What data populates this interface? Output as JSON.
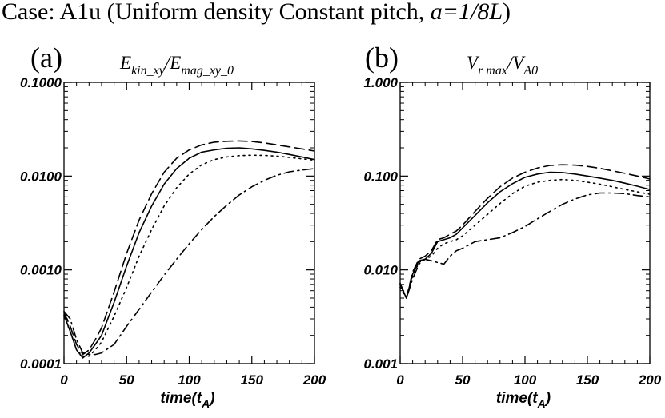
{
  "figure": {
    "title_prefix": "Case: A1u (Uniform density Constant pitch, ",
    "title_param": "a=1/8L",
    "title_suffix": ")"
  },
  "chart_data": [
    {
      "type": "line",
      "panel": "(a)",
      "title_sym": "E",
      "title_sub": "kin_xy",
      "title_sep": "/E",
      "title_sub2": "mag_xy_0",
      "xlabel_main": "time(t",
      "xlabel_sub": "A",
      "xlabel_end": ")",
      "yscale": "log",
      "xlim": [
        0,
        200
      ],
      "ylim": [
        0.0001,
        0.1
      ],
      "xticks": [
        0,
        50,
        100,
        150,
        200
      ],
      "xtick_labels": [
        "0",
        "50",
        "100",
        "150",
        "200"
      ],
      "yticks": [
        0.0001,
        0.001,
        0.01,
        0.1
      ],
      "ytick_labels": [
        "0.0001",
        "0.0010",
        "0.0100",
        "0.1000"
      ],
      "series": [
        {
          "name": "solid",
          "dash": "solid",
          "x": [
            0,
            5,
            10,
            15,
            20,
            25,
            30,
            40,
            50,
            60,
            70,
            80,
            90,
            100,
            110,
            120,
            130,
            140,
            150,
            160,
            170,
            180,
            190,
            200
          ],
          "y": [
            0.00033,
            0.00022,
            0.00014,
            0.000115,
            0.00013,
            0.00016,
            0.0002,
            0.00045,
            0.0011,
            0.0025,
            0.0048,
            0.0082,
            0.012,
            0.0155,
            0.018,
            0.019,
            0.0198,
            0.02,
            0.0195,
            0.0188,
            0.018,
            0.017,
            0.016,
            0.015
          ]
        },
        {
          "name": "dashed",
          "dash": "dashed",
          "x": [
            0,
            5,
            10,
            15,
            20,
            25,
            30,
            40,
            50,
            60,
            70,
            80,
            90,
            100,
            110,
            120,
            130,
            140,
            150,
            160,
            170,
            180,
            190,
            200
          ],
          "y": [
            0.00035,
            0.00025,
            0.00016,
            0.000125,
            0.00014,
            0.00018,
            0.00024,
            0.00058,
            0.0015,
            0.0034,
            0.0065,
            0.011,
            0.0155,
            0.019,
            0.0215,
            0.023,
            0.0235,
            0.0237,
            0.0234,
            0.0226,
            0.0215,
            0.0205,
            0.0195,
            0.0185
          ]
        },
        {
          "name": "dotted",
          "dash": "dotted",
          "x": [
            0,
            5,
            10,
            15,
            20,
            25,
            30,
            40,
            50,
            60,
            70,
            80,
            90,
            100,
            110,
            120,
            130,
            140,
            150,
            160,
            170,
            180,
            190,
            200
          ],
          "y": [
            0.00032,
            0.00022,
            0.00014,
            0.00012,
            0.00012,
            0.00014,
            0.00017,
            0.00032,
            0.00065,
            0.0014,
            0.0027,
            0.0048,
            0.0075,
            0.0105,
            0.0132,
            0.015,
            0.016,
            0.0165,
            0.0167,
            0.0166,
            0.0163,
            0.0158,
            0.0153,
            0.0148
          ]
        },
        {
          "name": "dash-dot",
          "dash": "dashdot",
          "x": [
            0,
            5,
            10,
            15,
            20,
            25,
            30,
            40,
            50,
            60,
            70,
            80,
            90,
            100,
            110,
            120,
            130,
            140,
            150,
            160,
            170,
            180,
            190,
            200
          ],
          "y": [
            0.00036,
            0.0003,
            0.00018,
            0.00013,
            0.000125,
            0.000125,
            0.00013,
            0.00016,
            0.00025,
            0.00038,
            0.00058,
            0.00088,
            0.0013,
            0.0019,
            0.0027,
            0.0037,
            0.0049,
            0.0063,
            0.0077,
            0.009,
            0.0102,
            0.0111,
            0.0116,
            0.012
          ]
        }
      ]
    },
    {
      "type": "line",
      "panel": "(b)",
      "title_sym": "V",
      "title_sub": "r  max",
      "title_sep": "/V",
      "title_sub2": "A0",
      "xlabel_main": "time(t",
      "xlabel_sub": "A",
      "xlabel_end": ")",
      "yscale": "log",
      "xlim": [
        0,
        200
      ],
      "ylim": [
        0.001,
        1.0
      ],
      "xticks": [
        0,
        50,
        100,
        150,
        200
      ],
      "xtick_labels": [
        "0",
        "50",
        "100",
        "150",
        "200"
      ],
      "yticks": [
        0.001,
        0.01,
        0.1,
        1.0
      ],
      "ytick_labels": [
        "0.001",
        "0.010",
        "0.100",
        "1.000"
      ],
      "series": [
        {
          "name": "solid",
          "dash": "solid",
          "x": [
            0,
            5,
            10,
            15,
            20,
            25,
            30,
            35,
            40,
            45,
            50,
            60,
            70,
            80,
            90,
            100,
            110,
            120,
            130,
            140,
            150,
            160,
            170,
            180,
            190,
            200
          ],
          "y": [
            0.007,
            0.005,
            0.009,
            0.0125,
            0.013,
            0.015,
            0.02,
            0.021,
            0.022,
            0.024,
            0.028,
            0.038,
            0.052,
            0.068,
            0.083,
            0.097,
            0.105,
            0.11,
            0.109,
            0.105,
            0.1,
            0.095,
            0.09,
            0.084,
            0.078,
            0.072
          ]
        },
        {
          "name": "dashed",
          "dash": "dashed",
          "x": [
            0,
            5,
            10,
            15,
            20,
            25,
            30,
            35,
            40,
            45,
            50,
            60,
            70,
            80,
            90,
            100,
            110,
            120,
            130,
            140,
            150,
            160,
            170,
            180,
            190,
            200
          ],
          "y": [
            0.007,
            0.005,
            0.0095,
            0.013,
            0.014,
            0.016,
            0.021,
            0.022,
            0.024,
            0.026,
            0.03,
            0.042,
            0.058,
            0.077,
            0.095,
            0.11,
            0.122,
            0.13,
            0.132,
            0.131,
            0.127,
            0.121,
            0.114,
            0.107,
            0.1,
            0.093
          ]
        },
        {
          "name": "dotted",
          "dash": "dotted",
          "x": [
            0,
            5,
            10,
            15,
            20,
            25,
            30,
            35,
            40,
            45,
            50,
            60,
            70,
            80,
            90,
            100,
            110,
            120,
            130,
            140,
            150,
            160,
            170,
            180,
            190,
            200
          ],
          "y": [
            0.0065,
            0.005,
            0.0085,
            0.012,
            0.013,
            0.014,
            0.017,
            0.019,
            0.02,
            0.021,
            0.023,
            0.03,
            0.039,
            0.051,
            0.065,
            0.078,
            0.086,
            0.09,
            0.092,
            0.09,
            0.086,
            0.082,
            0.077,
            0.072,
            0.068,
            0.064
          ]
        },
        {
          "name": "dash-dot",
          "dash": "dashdot",
          "x": [
            0,
            5,
            10,
            15,
            20,
            25,
            30,
            35,
            40,
            45,
            50,
            60,
            70,
            80,
            90,
            100,
            110,
            120,
            130,
            140,
            150,
            160,
            170,
            180,
            190,
            200
          ],
          "y": [
            0.0072,
            0.005,
            0.008,
            0.0115,
            0.013,
            0.0125,
            0.012,
            0.0115,
            0.014,
            0.016,
            0.017,
            0.02,
            0.021,
            0.022,
            0.025,
            0.029,
            0.035,
            0.042,
            0.05,
            0.057,
            0.063,
            0.066,
            0.066,
            0.065,
            0.062,
            0.06
          ]
        }
      ]
    }
  ]
}
